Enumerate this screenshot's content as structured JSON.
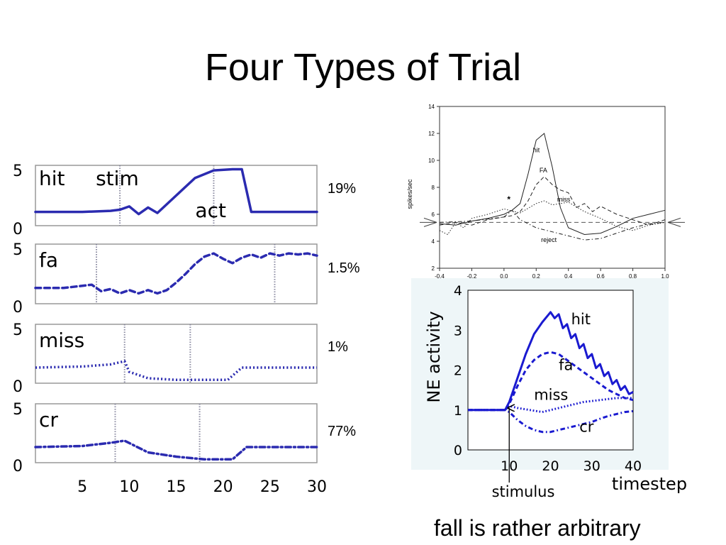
{
  "slide": {
    "title": "Four Types of Trial",
    "caption": "fall is rather arbitrary"
  },
  "colors": {
    "model_line": "#2b2bb0",
    "panel_grid": "#8a8aa0",
    "recording_line": "#222222",
    "ne_line": "#1a1ad0",
    "ne_background": "#eef6f8"
  },
  "chart_data": [
    {
      "type": "line",
      "id": "model-trials",
      "xlim": [
        0,
        30
      ],
      "ylim": [
        0,
        5
      ],
      "x_ticks": [
        "5",
        "10",
        "15",
        "20",
        "25",
        "30"
      ],
      "x_tick_values": [
        5,
        10,
        15,
        20,
        25,
        30
      ],
      "y_tick_labels": [
        "0",
        "5"
      ],
      "grid": "dotted vertical markers at stimulus and action",
      "panels": [
        {
          "name": "hit",
          "percent": "19%",
          "style": "solid",
          "stim_x": 9,
          "act_x": 19,
          "stim_label": "stim",
          "act_label": "act",
          "x": [
            0,
            5,
            8,
            9,
            10,
            11,
            12,
            13,
            15,
            17,
            19,
            21,
            22,
            23,
            24,
            30
          ],
          "y": [
            1.0,
            1.0,
            1.1,
            1.2,
            1.5,
            0.8,
            1.4,
            0.9,
            2.5,
            4.1,
            4.8,
            4.9,
            4.9,
            1.0,
            1.0,
            1.0
          ]
        },
        {
          "name": "fa",
          "percent": "1.5%",
          "style": "dashed",
          "stim_x": 6.5,
          "act_x": 25.5,
          "x": [
            0,
            3,
            6,
            7,
            8,
            9,
            10,
            11,
            12,
            13,
            14,
            15,
            16,
            17,
            18,
            19,
            20,
            21,
            22,
            23,
            24,
            25,
            26,
            27,
            28,
            29,
            30
          ],
          "y": [
            1.2,
            1.2,
            1.5,
            0.9,
            1.1,
            0.7,
            1.0,
            0.7,
            1.0,
            0.7,
            1.0,
            1.7,
            2.5,
            3.4,
            4.1,
            4.4,
            3.9,
            3.5,
            4.0,
            4.3,
            4.0,
            4.4,
            4.2,
            4.4,
            4.3,
            4.4,
            4.2
          ]
        },
        {
          "name": "miss",
          "percent": "1%",
          "style": "dotted",
          "stim_x": 9.5,
          "act_x": 16.5,
          "x": [
            0,
            5,
            8,
            9.5,
            10,
            12,
            15,
            19,
            20.5,
            22,
            30
          ],
          "y": [
            1.2,
            1.3,
            1.5,
            1.8,
            0.8,
            0.2,
            0.05,
            0.05,
            0.05,
            1.2,
            1.2
          ]
        },
        {
          "name": "cr",
          "percent": "77%",
          "style": "dashdot",
          "stim_x": 8.5,
          "act_x": 17.5,
          "x": [
            0,
            5,
            8,
            9.5,
            12,
            15,
            18,
            21,
            22.5,
            30
          ],
          "y": [
            1.2,
            1.3,
            1.6,
            1.8,
            0.7,
            0.3,
            0.05,
            0.05,
            1.2,
            1.2
          ]
        }
      ]
    },
    {
      "type": "line",
      "id": "recorded-spikes",
      "ylabel": "spikes/sec",
      "xlim": [
        -0.4,
        1.0
      ],
      "ylim": [
        2,
        14
      ],
      "x_ticks": [
        "-0.4",
        "-0.2",
        "0.0",
        "0.2",
        "0.4",
        "0.6",
        "0.8",
        "1.0"
      ],
      "x_tick_values": [
        -0.4,
        -0.2,
        0.0,
        0.2,
        0.4,
        0.6,
        0.8,
        1.0
      ],
      "y_ticks": [
        "2",
        "4",
        "6",
        "8",
        "10",
        "12",
        "14"
      ],
      "y_tick_values": [
        2,
        4,
        6,
        8,
        10,
        12,
        14
      ],
      "baseline": 5.4,
      "star_annotation": "*",
      "series": [
        {
          "name": "hit",
          "style": "solid",
          "x": [
            -0.4,
            -0.3,
            -0.2,
            -0.1,
            0.0,
            0.05,
            0.1,
            0.15,
            0.2,
            0.25,
            0.3,
            0.35,
            0.4,
            0.5,
            0.6,
            0.7,
            0.8,
            0.9,
            1.0
          ],
          "y": [
            5.3,
            5.2,
            5.5,
            5.7,
            6.0,
            6.3,
            6.8,
            9.0,
            11.5,
            12.0,
            9.5,
            6.5,
            5.0,
            4.5,
            4.6,
            5.1,
            5.7,
            6.0,
            6.3
          ]
        },
        {
          "name": "FA",
          "style": "dashed",
          "x": [
            -0.4,
            -0.3,
            -0.2,
            -0.1,
            0.0,
            0.05,
            0.1,
            0.15,
            0.2,
            0.25,
            0.3,
            0.35,
            0.4,
            0.45,
            0.5,
            0.55,
            0.6,
            0.7,
            0.8,
            0.9,
            1.0
          ],
          "y": [
            5.2,
            5.4,
            5.2,
            5.6,
            5.8,
            5.9,
            6.2,
            7.0,
            8.2,
            8.8,
            8.2,
            7.8,
            7.6,
            6.5,
            6.8,
            6.2,
            6.6,
            6.0,
            5.6,
            5.2,
            5.6
          ]
        },
        {
          "name": "miss",
          "style": "dotted",
          "x": [
            -0.4,
            -0.35,
            -0.3,
            -0.25,
            -0.2,
            -0.1,
            0.0,
            0.1,
            0.2,
            0.25,
            0.3,
            0.4,
            0.5,
            0.6,
            0.7,
            0.8,
            0.9,
            1.0
          ],
          "y": [
            4.8,
            4.5,
            5.4,
            5.0,
            5.7,
            6.0,
            6.4,
            6.1,
            6.8,
            7.0,
            6.7,
            6.9,
            6.2,
            5.7,
            5.1,
            4.8,
            5.2,
            5.4
          ]
        },
        {
          "name": "reject",
          "style": "dashdot",
          "x": [
            -0.4,
            -0.2,
            0.0,
            0.05,
            0.1,
            0.2,
            0.3,
            0.4,
            0.5,
            0.6,
            0.7,
            0.8,
            0.9,
            1.0
          ],
          "y": [
            5.4,
            5.5,
            5.8,
            6.3,
            5.6,
            5.0,
            4.7,
            4.4,
            4.1,
            4.2,
            4.6,
            5.0,
            5.3,
            5.4
          ]
        }
      ]
    },
    {
      "type": "line",
      "id": "ne-activity",
      "ylabel": "NE activity",
      "xlabel": "timestep",
      "xlim": [
        0,
        40
      ],
      "ylim": [
        0,
        4
      ],
      "x_ticks": [
        "10",
        "20",
        "30",
        "40"
      ],
      "x_tick_values": [
        10,
        20,
        30,
        40
      ],
      "y_ticks": [
        "0",
        "1",
        "2",
        "3",
        "4"
      ],
      "y_tick_values": [
        0,
        1,
        2,
        3,
        4
      ],
      "stimulus_label": "stimulus",
      "stimulus_x": 10,
      "series": [
        {
          "name": "hit",
          "style": "solid",
          "x": [
            0,
            9,
            10,
            12,
            14,
            16,
            18,
            20,
            21,
            22,
            23,
            24,
            25,
            26,
            27,
            28,
            29,
            30,
            31,
            32,
            33,
            34,
            35,
            36,
            37,
            38,
            39,
            40
          ],
          "y": [
            1.0,
            1.0,
            1.2,
            1.8,
            2.4,
            2.9,
            3.2,
            3.45,
            3.3,
            3.4,
            3.05,
            3.15,
            2.8,
            2.9,
            2.55,
            2.65,
            2.3,
            2.4,
            2.05,
            2.15,
            1.85,
            1.95,
            1.65,
            1.75,
            1.5,
            1.6,
            1.4,
            1.45
          ]
        },
        {
          "name": "fa",
          "style": "dashed",
          "x": [
            0,
            9,
            10,
            12,
            14,
            16,
            18,
            20,
            22,
            24,
            26,
            28,
            30,
            32,
            34,
            36,
            38,
            40
          ],
          "y": [
            1.0,
            1.0,
            1.15,
            1.6,
            2.0,
            2.25,
            2.4,
            2.45,
            2.4,
            2.25,
            2.1,
            1.95,
            1.8,
            1.65,
            1.5,
            1.4,
            1.3,
            1.25
          ]
        },
        {
          "name": "miss",
          "style": "dotted",
          "x": [
            0,
            9,
            10,
            12,
            15,
            18,
            20,
            24,
            28,
            32,
            36,
            40
          ],
          "y": [
            1.0,
            1.0,
            1.1,
            1.05,
            1.0,
            0.95,
            1.0,
            1.1,
            1.2,
            1.25,
            1.3,
            1.3
          ]
        },
        {
          "name": "cr",
          "style": "dashdot",
          "x": [
            0,
            9,
            10,
            12,
            14,
            16,
            18,
            20,
            22,
            24,
            26,
            28,
            30,
            32,
            34,
            36,
            38,
            40
          ],
          "y": [
            1.0,
            1.0,
            0.95,
            0.75,
            0.6,
            0.5,
            0.45,
            0.45,
            0.5,
            0.55,
            0.6,
            0.65,
            0.7,
            0.78,
            0.85,
            0.9,
            0.95,
            0.97
          ]
        }
      ]
    }
  ]
}
